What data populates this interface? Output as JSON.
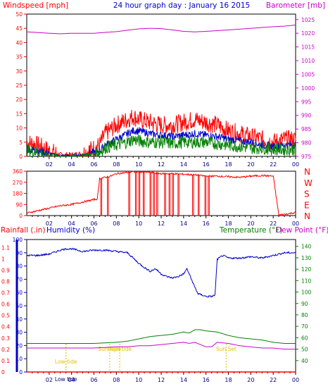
{
  "colors": {
    "frame": "#000000",
    "red": "#ff0000",
    "blue": "#0000cc",
    "green": "#008000",
    "magenta": "#cc00cc",
    "yellow": "#e0c000",
    "darkblue": "#000080"
  },
  "header": {
    "left_label": "Windspeed [mph]",
    "title": "24 hour graph day : January 16 2015",
    "right_label": "Barometer [mb]"
  },
  "bottom_header": {
    "rainfall": "Rainfall (.in)",
    "humidity": "Humidity (%)",
    "temperature": "Temperature (°F)",
    "dewpoint": "Dew Point (°F)"
  },
  "chart_data": [
    {
      "type": "line",
      "name": "wind-and-barometer",
      "xlim": [
        0,
        24
      ],
      "x_ticks": [
        "02",
        "04",
        "06",
        "08",
        "10",
        "12",
        "14",
        "16",
        "18",
        "20",
        "22",
        "00"
      ],
      "ylim": [
        0,
        50
      ],
      "y_ticks": [
        0,
        5,
        10,
        15,
        20,
        25,
        30,
        35,
        40,
        45,
        50
      ],
      "ylabel": "Windspeed [mph]",
      "y2lim": [
        975,
        1027
      ],
      "y2_ticks": [
        975,
        980,
        985,
        990,
        995,
        1000,
        1005,
        1010,
        1015,
        1020,
        1025
      ],
      "y2label": "Barometer [mb]",
      "series": [
        {
          "color": "red",
          "axis": "left",
          "style": "noisy",
          "noise": 3.2,
          "x": [
            0,
            1,
            2,
            3,
            4,
            5,
            6,
            6.5,
            7,
            8,
            9,
            9.5,
            10,
            11,
            12,
            13,
            14,
            15,
            16,
            17,
            18,
            19,
            20,
            21,
            22,
            23,
            24
          ],
          "y": [
            5,
            4,
            2,
            0.5,
            0.5,
            1,
            3,
            4,
            8,
            11,
            13,
            14,
            13,
            12,
            11,
            11,
            12,
            13,
            12,
            11,
            9,
            8,
            7,
            6,
            5,
            6,
            6
          ]
        },
        {
          "color": "blue",
          "axis": "left",
          "style": "noisy",
          "noise": 1.3,
          "x": [
            0,
            1,
            2,
            3,
            4,
            5,
            6,
            6.5,
            7,
            8,
            9,
            9.5,
            10,
            11,
            12,
            13,
            14,
            15,
            16,
            17,
            18,
            19,
            20,
            21,
            22,
            23,
            24
          ],
          "y": [
            2.5,
            2,
            1,
            0.3,
            0.3,
            0.5,
            1.5,
            2,
            4,
            6,
            8,
            9,
            9,
            8,
            7.5,
            7,
            7.5,
            8,
            7.5,
            7,
            6,
            5.5,
            5,
            4,
            3.5,
            4,
            4
          ]
        },
        {
          "color": "green",
          "axis": "left",
          "style": "noisy",
          "noise": 2.2,
          "x": [
            0,
            1,
            2,
            3,
            4,
            5,
            6,
            6.5,
            7,
            8,
            9,
            9.5,
            10,
            11,
            12,
            13,
            14,
            15,
            16,
            17,
            18,
            19,
            20,
            21,
            22,
            23,
            24
          ],
          "y": [
            2,
            1.5,
            0.5,
            0,
            0,
            0.3,
            1,
            1.5,
            3,
            4,
            5,
            6,
            5.5,
            5,
            5,
            4.5,
            5,
            5,
            5,
            4.5,
            4,
            3.5,
            3,
            3,
            2.5,
            2.5,
            2.5
          ]
        },
        {
          "color": "magenta",
          "axis": "right",
          "style": "smooth",
          "x": [
            0,
            2,
            3,
            4,
            6,
            8,
            10,
            11,
            12,
            13,
            14,
            15,
            16,
            18,
            20,
            22,
            23,
            24
          ],
          "y": [
            1020.5,
            1020,
            1019.8,
            1020,
            1020,
            1020.6,
            1021.6,
            1021.8,
            1021.7,
            1021.2,
            1020.7,
            1020.5,
            1020.7,
            1021.2,
            1021.8,
            1022.4,
            1022.6,
            1023
          ]
        }
      ]
    },
    {
      "type": "scatter",
      "name": "wind-direction",
      "xlim": [
        0,
        24
      ],
      "x_ticks": [
        "02",
        "04",
        "06",
        "08",
        "10",
        "12",
        "14",
        "16",
        "18",
        "20",
        "22",
        "00"
      ],
      "ylim": [
        0,
        360
      ],
      "y_ticks": [
        0,
        90,
        180,
        270,
        360
      ],
      "compass": [
        "N",
        "W",
        "S",
        "E",
        "N"
      ],
      "series": [
        {
          "color": "red",
          "x": [
            0,
            1,
            2,
            3,
            4,
            5,
            6,
            6.3,
            6.5,
            7,
            7.5,
            8,
            8.5,
            9,
            9.5,
            10,
            11,
            12,
            13,
            14,
            15,
            16,
            17,
            18,
            19,
            20,
            21,
            22,
            22.5,
            23,
            24
          ],
          "y": [
            20,
            40,
            60,
            80,
            90,
            110,
            130,
            135,
            300,
            310,
            320,
            340,
            345,
            350,
            355,
            355,
            350,
            340,
            340,
            335,
            330,
            320,
            320,
            315,
            310,
            320,
            325,
            320,
            5,
            10,
            25
          ],
          "drops": [
            6.6,
            7.2,
            9.1,
            9.7,
            10.0,
            10.4,
            11.0,
            11.3,
            11.6,
            12.3,
            12.7,
            13.0,
            13.5,
            14.8,
            15.3,
            15.9,
            16.2,
            22.5
          ]
        }
      ]
    },
    {
      "type": "line",
      "name": "humidity-temperature-rain",
      "xlim": [
        0,
        24
      ],
      "x_ticks": [
        "02",
        "04",
        "06",
        "08",
        "10",
        "12",
        "14",
        "16",
        "18",
        "20",
        "22",
        "00"
      ],
      "ylim": [
        0,
        100
      ],
      "y_ticks": [
        0,
        10,
        20,
        30,
        40,
        50,
        60,
        70,
        80,
        90,
        100
      ],
      "rain_ticks": [
        "0",
        "0.1",
        "0.2",
        "0.3",
        "0.4",
        "0.5",
        "0.6",
        "0.7",
        "0.8",
        "0.9",
        "1",
        "1.1"
      ],
      "y2lim": [
        30,
        146
      ],
      "y2_ticks": [
        40,
        50,
        60,
        70,
        80,
        90,
        100,
        110,
        120,
        130,
        140
      ],
      "series": [
        {
          "color": "blue",
          "axis": "left",
          "style": "noisy",
          "noise": 0.7,
          "x": [
            0,
            1,
            2,
            3,
            3.5,
            4,
            5,
            6,
            7,
            8,
            9,
            10,
            11,
            11.5,
            12,
            12.5,
            13,
            13.5,
            14,
            14.3,
            14.7,
            15,
            15.3,
            15.7,
            16,
            16.5,
            16.8,
            17,
            17.5,
            18,
            19,
            20,
            21,
            22,
            23,
            24
          ],
          "y": [
            88,
            88,
            89,
            92,
            93,
            93,
            91,
            92,
            92,
            91,
            90,
            82,
            76,
            78,
            74,
            72,
            71,
            72,
            74,
            78,
            70,
            64,
            59,
            58,
            57,
            57,
            58,
            85,
            88,
            86,
            86,
            87,
            86,
            88,
            90,
            90
          ]
        },
        {
          "color": "green",
          "axis": "right",
          "style": "smooth",
          "x": [
            0,
            2,
            4,
            6,
            8,
            9,
            10,
            11,
            12,
            13,
            14,
            14.5,
            15,
            15.5,
            16,
            17,
            18,
            19,
            20,
            21,
            22,
            23,
            24
          ],
          "y": [
            55,
            55,
            55,
            55,
            56,
            57,
            59,
            61,
            62,
            63,
            65,
            64,
            67,
            67,
            66,
            65,
            62,
            60,
            59,
            58,
            56,
            55,
            55
          ]
        },
        {
          "color": "magenta",
          "axis": "right",
          "style": "smooth",
          "x": [
            0,
            2,
            4,
            6,
            8,
            9,
            10,
            11,
            12,
            13,
            14,
            14.5,
            15,
            15.5,
            16,
            16.5,
            17,
            18,
            19,
            20,
            21,
            22,
            23,
            24
          ],
          "y": [
            51,
            51,
            51,
            51,
            52,
            52,
            53,
            53,
            54,
            55,
            56,
            55,
            56,
            54,
            52,
            52,
            56,
            55,
            53,
            52,
            51,
            51,
            50,
            50
          ]
        },
        {
          "color": "red",
          "axis": "left",
          "style": "flat",
          "x": [
            0,
            24
          ],
          "y": [
            0,
            0
          ]
        }
      ],
      "events": [
        {
          "label": "Low tide",
          "x": 3.5,
          "row": 1
        },
        {
          "label": "Low tide",
          "x": 3.5,
          "row": 2
        },
        {
          "label": "Sun Rise",
          "x": 7.4,
          "row": 0
        },
        {
          "label": "High tide",
          "x": 8.3,
          "row": 0
        },
        {
          "label": "Sun Set",
          "x": 17.8,
          "row": 0
        }
      ]
    }
  ]
}
